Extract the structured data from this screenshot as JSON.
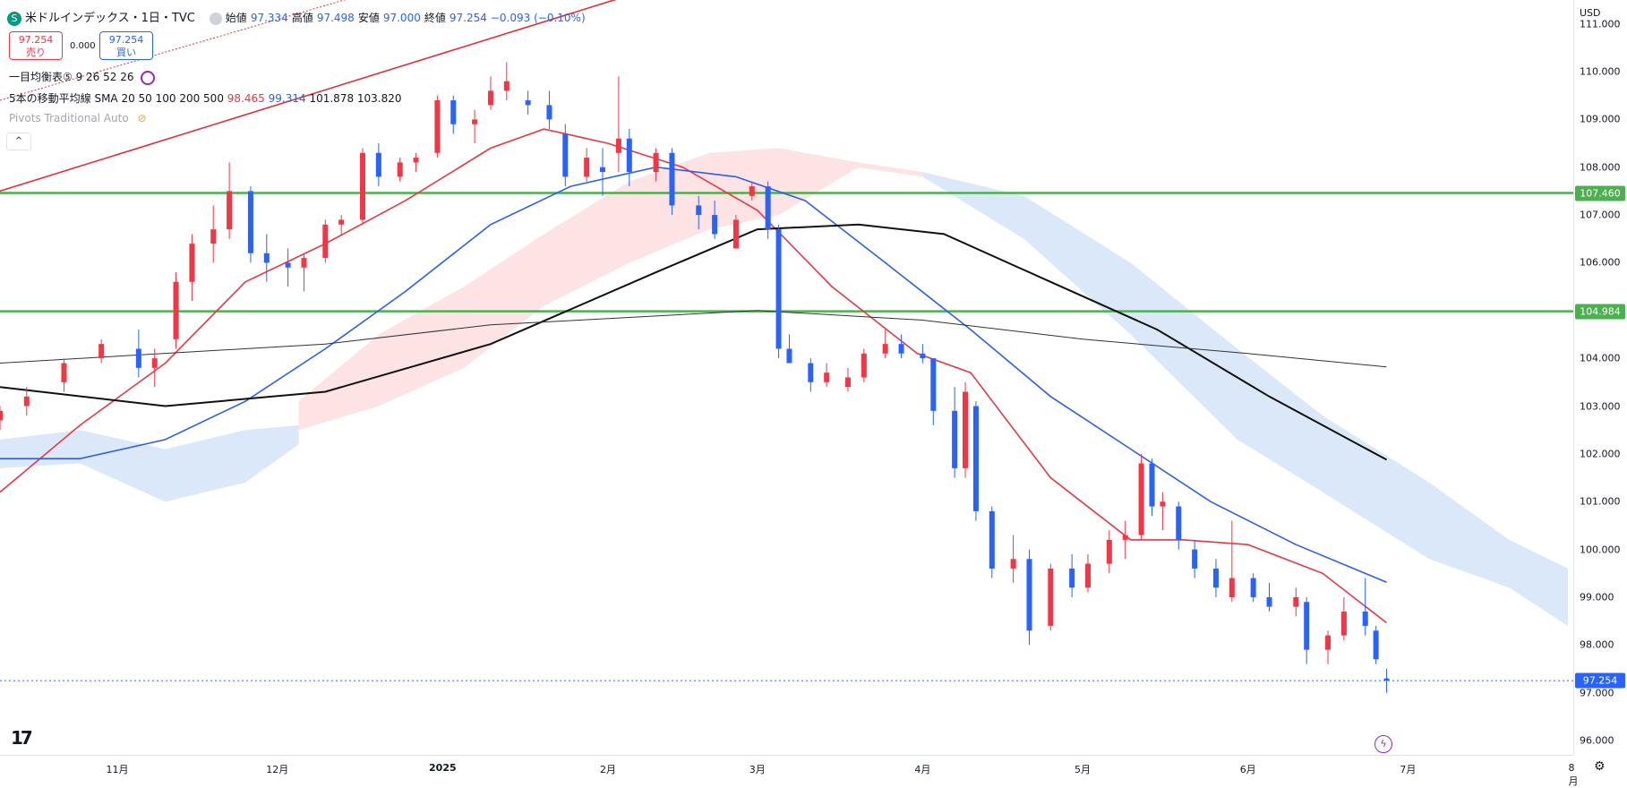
{
  "header": {
    "symbol_icon": "S",
    "title": "米ドルインデックス・1日・TVC",
    "open_label": "始値",
    "open": "97.334",
    "high_label": "高値",
    "high": "97.498",
    "low_label": "安値",
    "low": "97.000",
    "close_label": "終値",
    "close": "97.254",
    "change": "−0.093 (−0.10%)"
  },
  "trade": {
    "sell_price": "97.254",
    "sell_label": "売り",
    "spread": "0.000",
    "buy_price": "97.254",
    "buy_label": "買い"
  },
  "indicators": {
    "ichimoku": "一目均衡表⑤ 9 26 52 26",
    "sma_label": "5本の移動平均線 SMA 20 50 100 200 500",
    "sma_v1": "98.465",
    "sma_v2": "99.314",
    "sma_v3": "101.878",
    "sma_v4": "103.820",
    "pivots": "Pivots Traditional Auto"
  },
  "price_axis": {
    "currency": "USD",
    "ticks": [
      "111.000",
      "110.000",
      "109.000",
      "108.000",
      "107.000",
      "106.000",
      "105.000",
      "104.000",
      "103.000",
      "102.000",
      "101.000",
      "100.000",
      "99.000",
      "98.000",
      "97.000",
      "96.000"
    ],
    "tags": [
      {
        "label": "107.460",
        "value": 107.46,
        "color": "#4caf50"
      },
      {
        "label": "104.984",
        "value": 104.984,
        "color": "#4caf50"
      },
      {
        "label": "97.254",
        "value": 97.254,
        "color": "#2962ff"
      }
    ]
  },
  "time_axis": {
    "labels": [
      "11月",
      "12月",
      "2025",
      "2月",
      "3月",
      "4月",
      "5月",
      "6月",
      "7月",
      "8月"
    ],
    "dates": [
      "2024-11-01",
      "2024-12-01",
      "2025-01-01",
      "2025-02-01",
      "2025-03-01",
      "2025-04-01",
      "2025-05-01",
      "2025-06-01",
      "2025-07-01",
      "2025-08-01"
    ]
  },
  "icons": {
    "logo": "tradingview-logo",
    "alert": "lightning-icon",
    "settings": "gear-icon"
  },
  "colors": {
    "up": "#f23645",
    "down": "#2962ff",
    "sma20": "#e53945",
    "sma50": "#2f5fe8",
    "sma100": "#111111",
    "sma200": "#333333",
    "support": "#4caf50",
    "trend": "#e0303c",
    "cloud_bull": "#fde3e3",
    "cloud_bear": "#dbe8fa"
  },
  "chart_data": {
    "type": "candlestick",
    "title": "米ドルインデックス・1日・TVC",
    "x_range": [
      "2024-10-10",
      "2025-08-01"
    ],
    "ylim": [
      95.7,
      111.5
    ],
    "grid": false,
    "horizontal_lines": [
      107.46,
      104.984
    ],
    "last_price": 97.254,
    "candles": [
      [
        "2024-10-10",
        102.7,
        103.0,
        102.5,
        102.9
      ],
      [
        "2024-10-15",
        103.0,
        103.4,
        102.8,
        103.2
      ],
      [
        "2024-10-22",
        103.5,
        104.0,
        103.3,
        103.9
      ],
      [
        "2024-10-29",
        104.0,
        104.4,
        103.9,
        104.3
      ],
      [
        "2024-11-05",
        104.2,
        104.6,
        103.6,
        103.8
      ],
      [
        "2024-11-08",
        103.8,
        104.2,
        103.4,
        104.0
      ],
      [
        "2024-11-12",
        104.4,
        105.8,
        104.2,
        105.6
      ],
      [
        "2024-11-15",
        105.6,
        106.6,
        105.2,
        106.4
      ],
      [
        "2024-11-19",
        106.4,
        107.2,
        106.0,
        106.7
      ],
      [
        "2024-11-22",
        106.7,
        108.1,
        106.5,
        107.5
      ],
      [
        "2024-11-26",
        107.5,
        107.6,
        106.0,
        106.2
      ],
      [
        "2024-11-29",
        106.2,
        106.6,
        105.6,
        106.0
      ],
      [
        "2024-12-03",
        106.0,
        106.3,
        105.5,
        105.9
      ],
      [
        "2024-12-06",
        105.9,
        106.2,
        105.4,
        106.1
      ],
      [
        "2024-12-10",
        106.1,
        106.9,
        106.0,
        106.8
      ],
      [
        "2024-12-13",
        106.8,
        107.0,
        106.6,
        106.9
      ],
      [
        "2024-12-17",
        106.9,
        108.4,
        106.8,
        108.3
      ],
      [
        "2024-12-20",
        108.3,
        108.5,
        107.6,
        107.8
      ],
      [
        "2024-12-24",
        107.8,
        108.2,
        107.7,
        108.1
      ],
      [
        "2024-12-27",
        108.1,
        108.3,
        107.9,
        108.2
      ],
      [
        "2024-12-31",
        108.3,
        109.5,
        108.2,
        109.4
      ],
      [
        "2025-01-03",
        109.4,
        109.5,
        108.7,
        108.9
      ],
      [
        "2025-01-07",
        108.9,
        109.2,
        108.5,
        109.0
      ],
      [
        "2025-01-10",
        109.3,
        109.9,
        109.2,
        109.6
      ],
      [
        "2025-01-13",
        109.6,
        110.2,
        109.4,
        109.8
      ],
      [
        "2025-01-17",
        109.4,
        109.6,
        109.1,
        109.3
      ],
      [
        "2025-01-21",
        109.3,
        109.6,
        108.8,
        109.0
      ],
      [
        "2025-01-24",
        108.7,
        108.9,
        107.6,
        107.8
      ],
      [
        "2025-01-28",
        107.8,
        108.4,
        107.7,
        108.2
      ],
      [
        "2025-01-31",
        108.0,
        108.4,
        107.4,
        107.9
      ],
      [
        "2025-02-03",
        108.3,
        109.9,
        107.9,
        108.6
      ],
      [
        "2025-02-05",
        108.6,
        108.8,
        107.6,
        107.9
      ],
      [
        "2025-02-10",
        107.9,
        108.4,
        107.7,
        108.3
      ],
      [
        "2025-02-13",
        108.3,
        108.4,
        107.0,
        107.2
      ],
      [
        "2025-02-18",
        107.2,
        107.4,
        106.7,
        107.0
      ],
      [
        "2025-02-21",
        107.0,
        107.3,
        106.5,
        106.6
      ],
      [
        "2025-02-25",
        106.3,
        107.0,
        106.3,
        106.9
      ],
      [
        "2025-02-28",
        107.4,
        107.7,
        107.3,
        107.6
      ],
      [
        "2025-03-03",
        107.6,
        107.7,
        106.5,
        106.7
      ],
      [
        "2025-03-05",
        106.7,
        106.8,
        104.0,
        104.2
      ],
      [
        "2025-03-07",
        104.2,
        104.5,
        103.9,
        103.9
      ],
      [
        "2025-03-11",
        103.9,
        104.0,
        103.3,
        103.5
      ],
      [
        "2025-03-14",
        103.5,
        103.9,
        103.4,
        103.7
      ],
      [
        "2025-03-18",
        103.4,
        103.8,
        103.3,
        103.6
      ],
      [
        "2025-03-21",
        103.6,
        104.2,
        103.5,
        104.1
      ],
      [
        "2025-03-25",
        104.1,
        104.6,
        104.0,
        104.3
      ],
      [
        "2025-03-28",
        104.3,
        104.5,
        104.0,
        104.1
      ],
      [
        "2025-04-01",
        104.1,
        104.3,
        103.9,
        104.0
      ],
      [
        "2025-04-03",
        104.0,
        104.0,
        102.6,
        102.9
      ],
      [
        "2025-04-07",
        102.9,
        103.4,
        101.5,
        101.7
      ],
      [
        "2025-04-09",
        101.7,
        103.5,
        101.5,
        103.3
      ],
      [
        "2025-04-11",
        103.0,
        103.1,
        100.6,
        100.8
      ],
      [
        "2025-04-14",
        100.8,
        100.9,
        99.4,
        99.6
      ],
      [
        "2025-04-18",
        99.6,
        100.3,
        99.3,
        99.8
      ],
      [
        "2025-04-21",
        99.8,
        100.0,
        98.0,
        98.3
      ],
      [
        "2025-04-25",
        98.4,
        99.7,
        98.3,
        99.6
      ],
      [
        "2025-04-29",
        99.6,
        99.9,
        99.0,
        99.2
      ],
      [
        "2025-05-02",
        99.2,
        99.9,
        99.1,
        99.7
      ],
      [
        "2025-05-06",
        99.7,
        100.4,
        99.5,
        100.2
      ],
      [
        "2025-05-09",
        100.2,
        100.6,
        99.8,
        100.3
      ],
      [
        "2025-05-12",
        100.3,
        102.0,
        100.2,
        101.8
      ],
      [
        "2025-05-14",
        101.8,
        101.9,
        100.7,
        100.9
      ],
      [
        "2025-05-16",
        100.9,
        101.2,
        100.4,
        101.0
      ],
      [
        "2025-05-19",
        100.9,
        101.0,
        100.0,
        100.2
      ],
      [
        "2025-05-22",
        100.0,
        100.2,
        99.4,
        99.6
      ],
      [
        "2025-05-26",
        99.6,
        99.8,
        99.0,
        99.2
      ],
      [
        "2025-05-29",
        99.0,
        100.6,
        98.9,
        99.4
      ],
      [
        "2025-06-02",
        99.4,
        99.5,
        98.9,
        99.0
      ],
      [
        "2025-06-05",
        99.0,
        99.3,
        98.7,
        98.8
      ],
      [
        "2025-06-10",
        98.8,
        99.2,
        98.6,
        99.0
      ],
      [
        "2025-06-12",
        98.9,
        99.0,
        97.6,
        97.9
      ],
      [
        "2025-06-16",
        97.9,
        98.3,
        97.6,
        98.2
      ],
      [
        "2025-06-19",
        98.2,
        99.0,
        98.1,
        98.7
      ],
      [
        "2025-06-23",
        98.7,
        99.4,
        98.2,
        98.4
      ],
      [
        "2025-06-25",
        98.3,
        98.4,
        97.6,
        97.7
      ],
      [
        "2025-06-27",
        97.3,
        97.5,
        97.0,
        97.254
      ]
    ],
    "series": [
      {
        "type": "line",
        "color": "#e53945",
        "points": [
          [
            "2024-10-10",
            101.2
          ],
          [
            "2024-10-25",
            102.6
          ],
          [
            "2024-11-10",
            103.9
          ],
          [
            "2024-11-25",
            105.6
          ],
          [
            "2024-12-10",
            106.4
          ],
          [
            "2024-12-25",
            107.3
          ],
          [
            "2025-01-10",
            108.4
          ],
          [
            "2025-01-20",
            108.8
          ],
          [
            "2025-02-01",
            108.5
          ],
          [
            "2025-02-15",
            108.0
          ],
          [
            "2025-03-01",
            107.1
          ],
          [
            "2025-03-15",
            105.5
          ],
          [
            "2025-03-31",
            104.1
          ],
          [
            "2025-04-10",
            103.7
          ],
          [
            "2025-04-25",
            101.5
          ],
          [
            "2025-05-10",
            100.2
          ],
          [
            "2025-05-20",
            100.2
          ],
          [
            "2025-06-01",
            100.1
          ],
          [
            "2025-06-15",
            99.5
          ],
          [
            "2025-06-27",
            98.465
          ]
        ]
      },
      {
        "type": "line",
        "color": "#2f5fe8",
        "points": [
          [
            "2024-10-10",
            101.9
          ],
          [
            "2024-10-25",
            101.9
          ],
          [
            "2024-11-10",
            102.3
          ],
          [
            "2024-11-25",
            103.1
          ],
          [
            "2024-12-10",
            104.2
          ],
          [
            "2024-12-25",
            105.4
          ],
          [
            "2025-01-10",
            106.8
          ],
          [
            "2025-01-25",
            107.6
          ],
          [
            "2025-02-10",
            108.0
          ],
          [
            "2025-02-25",
            107.8
          ],
          [
            "2025-03-10",
            107.3
          ],
          [
            "2025-03-25",
            106.0
          ],
          [
            "2025-04-10",
            104.6
          ],
          [
            "2025-04-25",
            103.2
          ],
          [
            "2025-05-10",
            102.1
          ],
          [
            "2025-05-25",
            101.0
          ],
          [
            "2025-06-10",
            100.1
          ],
          [
            "2025-06-27",
            99.314
          ]
        ]
      },
      {
        "type": "line",
        "color": "#111111",
        "points": [
          [
            "2024-10-10",
            103.4
          ],
          [
            "2024-11-10",
            103.0
          ],
          [
            "2024-12-10",
            103.3
          ],
          [
            "2025-01-10",
            104.3
          ],
          [
            "2025-02-10",
            105.8
          ],
          [
            "2025-03-01",
            106.7
          ],
          [
            "2025-03-20",
            106.8
          ],
          [
            "2025-04-05",
            106.6
          ],
          [
            "2025-04-25",
            105.6
          ],
          [
            "2025-05-15",
            104.6
          ],
          [
            "2025-06-05",
            103.2
          ],
          [
            "2025-06-27",
            101.878
          ]
        ]
      },
      {
        "type": "line",
        "color": "#333333",
        "points": [
          [
            "2024-10-10",
            103.9
          ],
          [
            "2024-12-10",
            104.3
          ],
          [
            "2025-01-10",
            104.7
          ],
          [
            "2025-03-01",
            105.0
          ],
          [
            "2025-04-01",
            104.8
          ],
          [
            "2025-05-01",
            104.4
          ],
          [
            "2025-06-01",
            104.1
          ],
          [
            "2025-06-27",
            103.82
          ]
        ]
      },
      {
        "type": "line",
        "color": "#e0303c",
        "points": [
          [
            "2024-10-10",
            107.5
          ],
          [
            "2025-02-05",
            111.6
          ]
        ]
      }
    ]
  }
}
